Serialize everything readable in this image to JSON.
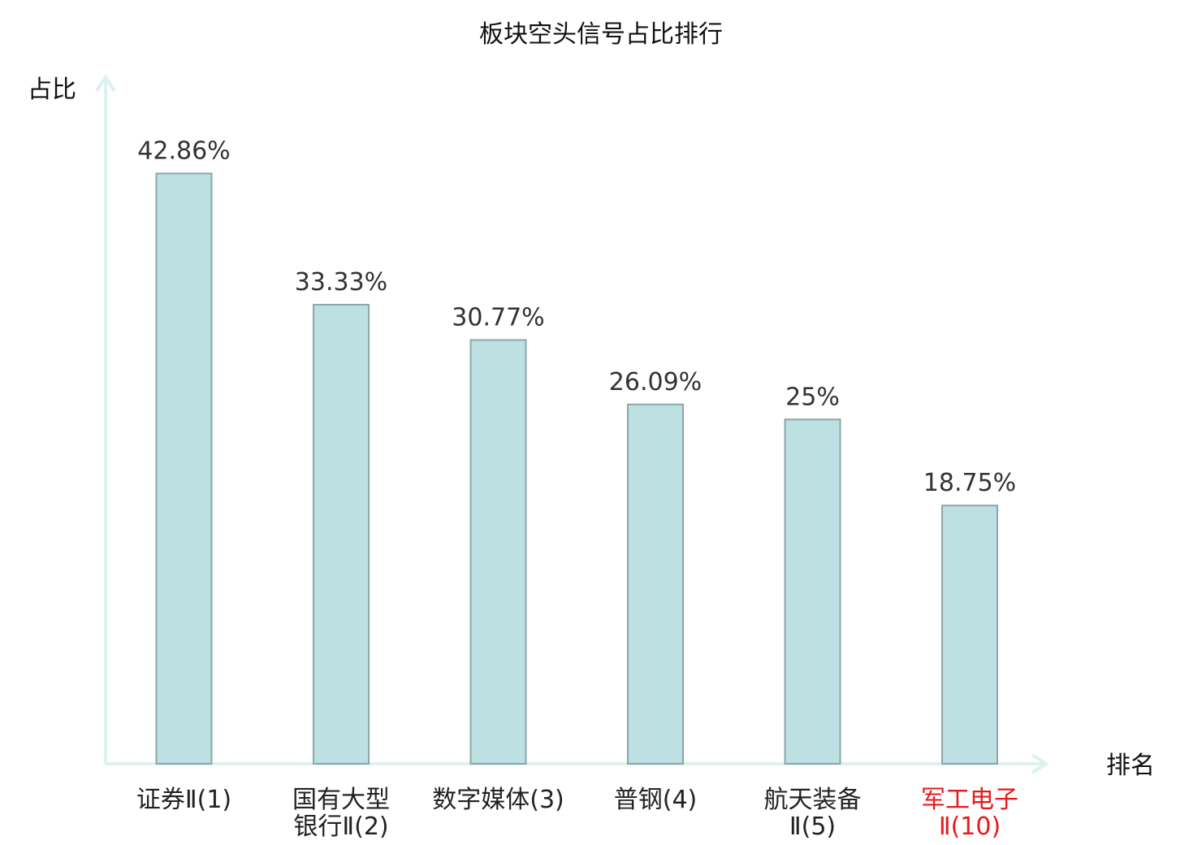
{
  "chart_data": {
    "type": "bar",
    "title": "板块空头信号占比排行",
    "ylabel": "占比",
    "xlabel": "排名",
    "categories": [
      [
        "证券Ⅱ(1)"
      ],
      [
        "国有大型",
        "银行Ⅱ(2)"
      ],
      [
        "数字媒体(3)"
      ],
      [
        "普钢(4)"
      ],
      [
        "航天装备",
        "Ⅱ(5)"
      ],
      [
        "军工电子",
        "Ⅱ(10)"
      ]
    ],
    "values": [
      42.86,
      33.33,
      30.77,
      26.09,
      25,
      18.75
    ],
    "value_labels": [
      "42.86%",
      "33.33%",
      "30.77%",
      "26.09%",
      "25%",
      "18.75%"
    ],
    "highlight_index": 5,
    "ylim": [
      0,
      50
    ],
    "grid": false,
    "legend": "none"
  },
  "colors": {
    "bar_fill": "#bde0e2",
    "bar_stroke": "#8aa7aa",
    "axis": "#ddf1ee",
    "label": "#222222",
    "highlight_label": "#e8191b"
  }
}
